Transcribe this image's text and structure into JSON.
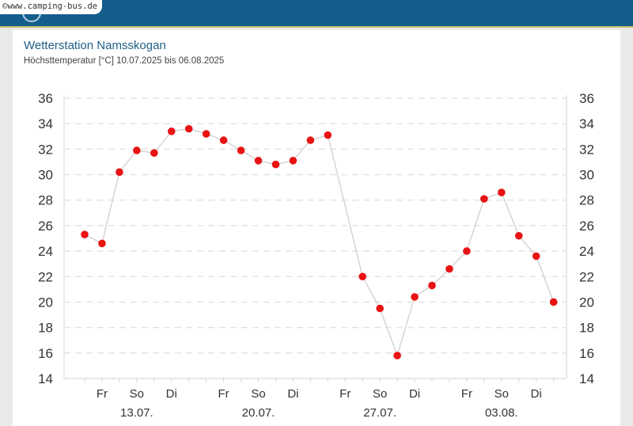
{
  "header": {
    "watermark": "©www.camping-bus.de"
  },
  "panel": {
    "title": "Wetterstation Namsskogan",
    "subtitle": "Höchsttemperatur [°C] 10.07.2025 bis 06.08.2025"
  },
  "colors": {
    "header_bg": "#135e8d",
    "point": "#e81313",
    "line": "#cccccc",
    "title": "#1e5f86"
  },
  "chart_data": {
    "type": "line",
    "title": "",
    "ylim": [
      14,
      36
    ],
    "yticks": [
      14,
      16,
      18,
      20,
      22,
      24,
      26,
      28,
      30,
      32,
      34,
      36
    ],
    "grid": true,
    "x": [
      "10.07.",
      "11.07.",
      "12.07.",
      "13.07.",
      "14.07.",
      "15.07.",
      "16.07.",
      "17.07.",
      "18.07.",
      "19.07.",
      "20.07.",
      "21.07.",
      "22.07.",
      "23.07.",
      "24.07.",
      "25.07.",
      "26.07.",
      "27.07.",
      "28.07.",
      "29.07.",
      "30.07.",
      "31.07.",
      "01.08.",
      "02.08.",
      "03.08.",
      "04.08.",
      "05.08.",
      "06.08."
    ],
    "values": [
      25.3,
      24.6,
      30.2,
      31.9,
      31.7,
      33.4,
      33.6,
      33.2,
      32.7,
      31.9,
      31.1,
      30.8,
      31.1,
      32.7,
      33.1,
      null,
      22.0,
      19.5,
      15.8,
      20.4,
      21.3,
      22.6,
      24.0,
      28.1,
      28.6,
      25.2,
      23.6,
      20.0
    ],
    "day_labels": [
      {
        "label": "Fr",
        "day": 1
      },
      {
        "label": "So",
        "day": 3
      },
      {
        "label": "Di",
        "day": 5
      },
      {
        "label": "Fr",
        "day": 8
      },
      {
        "label": "So",
        "day": 10
      },
      {
        "label": "Di",
        "day": 12
      },
      {
        "label": "Fr",
        "day": 15
      },
      {
        "label": "So",
        "day": 17
      },
      {
        "label": "Di",
        "day": 19
      },
      {
        "label": "Fr",
        "day": 22
      },
      {
        "label": "So",
        "day": 24
      },
      {
        "label": "Di",
        "day": 26
      }
    ],
    "date_labels": [
      {
        "label": "13.07.",
        "day": 3
      },
      {
        "label": "20.07.",
        "day": 10
      },
      {
        "label": "27.07.",
        "day": 17
      },
      {
        "label": "03.08.",
        "day": 24
      }
    ]
  }
}
